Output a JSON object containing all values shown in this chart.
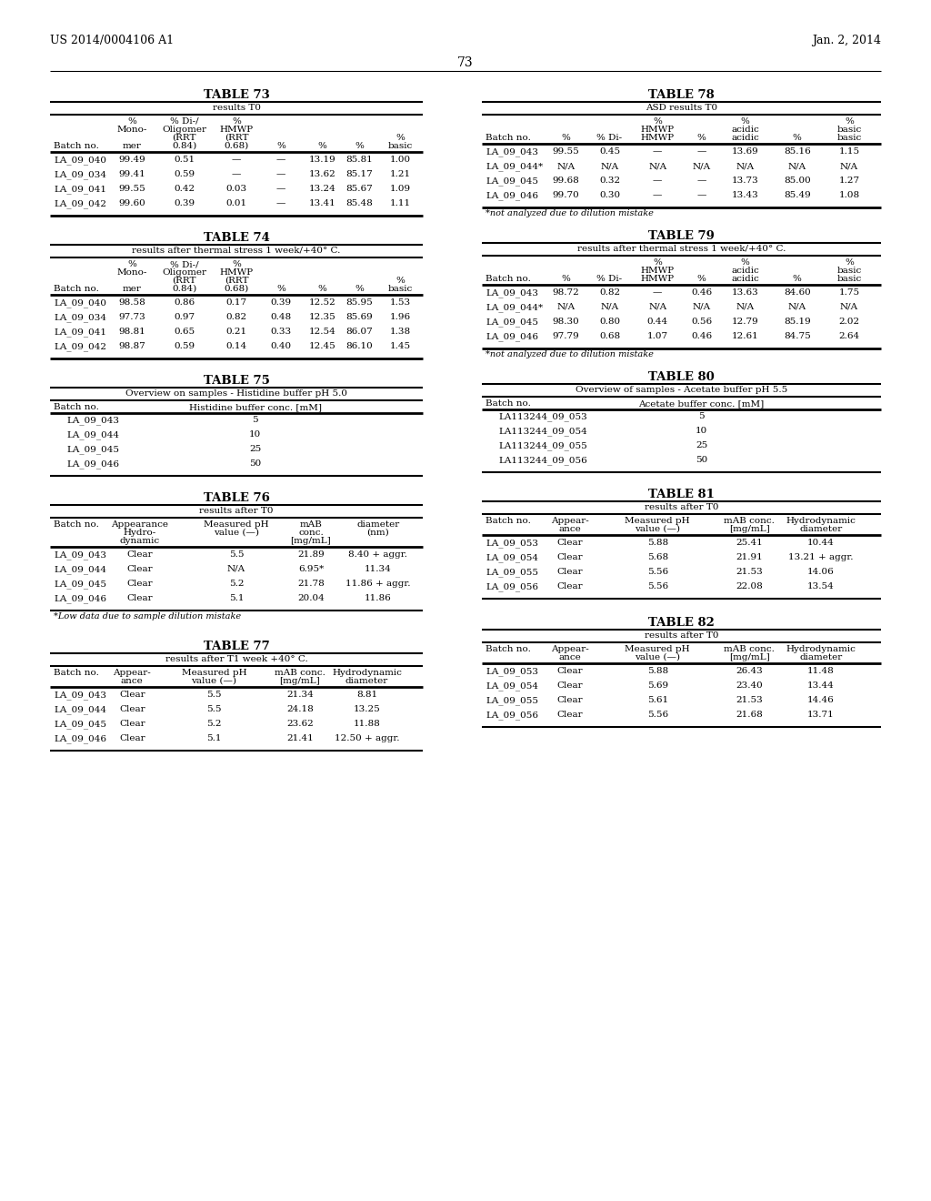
{
  "page_header_left": "US 2014/0004106 A1",
  "page_header_right": "Jan. 2, 2014",
  "page_number": "73",
  "background_color": "#ffffff",
  "table73_rows": [
    [
      "LA_09_040",
      "99.49",
      "0.51",
      "—",
      "—",
      "13.19",
      "85.81",
      "1.00"
    ],
    [
      "LA_09_034",
      "99.41",
      "0.59",
      "—",
      "—",
      "13.62",
      "85.17",
      "1.21"
    ],
    [
      "LA_09_041",
      "99.55",
      "0.42",
      "0.03",
      "—",
      "13.24",
      "85.67",
      "1.09"
    ],
    [
      "LA_09_042",
      "99.60",
      "0.39",
      "0.01",
      "—",
      "13.41",
      "85.48",
      "1.11"
    ]
  ],
  "table74_rows": [
    [
      "LA_09_040",
      "98.58",
      "0.86",
      "0.17",
      "0.39",
      "12.52",
      "85.95",
      "1.53"
    ],
    [
      "LA_09_034",
      "97.73",
      "0.97",
      "0.82",
      "0.48",
      "12.35",
      "85.69",
      "1.96"
    ],
    [
      "LA_09_041",
      "98.81",
      "0.65",
      "0.21",
      "0.33",
      "12.54",
      "86.07",
      "1.38"
    ],
    [
      "LA_09_042",
      "98.87",
      "0.59",
      "0.14",
      "0.40",
      "12.45",
      "86.10",
      "1.45"
    ]
  ],
  "table75_rows": [
    [
      "LA_09_043",
      "5"
    ],
    [
      "LA_09_044",
      "10"
    ],
    [
      "LA_09_045",
      "25"
    ],
    [
      "LA_09_046",
      "50"
    ]
  ],
  "table76_rows": [
    [
      "LA_09_043",
      "Clear",
      "5.5",
      "21.89",
      "8.40 + aggr."
    ],
    [
      "LA_09_044",
      "Clear",
      "N/A",
      "6.95*",
      "11.34"
    ],
    [
      "LA_09_045",
      "Clear",
      "5.2",
      "21.78",
      "11.86 + aggr."
    ],
    [
      "LA_09_046",
      "Clear",
      "5.1",
      "20.04",
      "11.86"
    ]
  ],
  "table76_footnote": "*Low data due to sample dilution mistake",
  "table77_rows": [
    [
      "LA_09_043",
      "Clear",
      "5.5",
      "21.34",
      "8.81"
    ],
    [
      "LA_09_044",
      "Clear",
      "5.5",
      "24.18",
      "13.25"
    ],
    [
      "LA_09_045",
      "Clear",
      "5.2",
      "23.62",
      "11.88"
    ],
    [
      "LA_09_046",
      "Clear",
      "5.1",
      "21.41",
      "12.50 + aggr."
    ]
  ],
  "table78_rows": [
    [
      "LA_09_043",
      "99.55",
      "0.45",
      "—",
      "—",
      "13.69",
      "85.16",
      "1.15"
    ],
    [
      "LA_09_044*",
      "N/A",
      "N/A",
      "N/A",
      "N/A",
      "N/A",
      "N/A",
      "N/A"
    ],
    [
      "LA_09_045",
      "99.68",
      "0.32",
      "—",
      "—",
      "13.73",
      "85.00",
      "1.27"
    ],
    [
      "LA_09_046",
      "99.70",
      "0.30",
      "—",
      "—",
      "13.43",
      "85.49",
      "1.08"
    ]
  ],
  "table78_footnote": "*not analyzed due to dilution mistake",
  "table79_rows": [
    [
      "LA_09_043",
      "98.72",
      "0.82",
      "—",
      "0.46",
      "13.63",
      "84.60",
      "1.75"
    ],
    [
      "LA_09_044*",
      "N/A",
      "N/A",
      "N/A",
      "N/A",
      "N/A",
      "N/A",
      "N/A"
    ],
    [
      "LA_09_045",
      "98.30",
      "0.80",
      "0.44",
      "0.56",
      "12.79",
      "85.19",
      "2.02"
    ],
    [
      "LA_09_046",
      "97.79",
      "0.68",
      "1.07",
      "0.46",
      "12.61",
      "84.75",
      "2.64"
    ]
  ],
  "table79_footnote": "*not analyzed due to dilution mistake",
  "table80_rows": [
    [
      "LA113244_09_053",
      "5"
    ],
    [
      "LA113244_09_054",
      "10"
    ],
    [
      "LA113244_09_055",
      "25"
    ],
    [
      "LA113244_09_056",
      "50"
    ]
  ],
  "table81_rows": [
    [
      "LA_09_053",
      "Clear",
      "5.88",
      "25.41",
      "10.44"
    ],
    [
      "LA_09_054",
      "Clear",
      "5.68",
      "21.91",
      "13.21 + aggr."
    ],
    [
      "LA_09_055",
      "Clear",
      "5.56",
      "21.53",
      "14.06"
    ],
    [
      "LA_09_056",
      "Clear",
      "5.56",
      "22.08",
      "13.54"
    ]
  ],
  "table82_rows": [
    [
      "LA_09_053",
      "Clear",
      "5.88",
      "26.43",
      "11.48"
    ],
    [
      "LA_09_054",
      "Clear",
      "5.69",
      "23.40",
      "13.44"
    ],
    [
      "LA_09_055",
      "Clear",
      "5.61",
      "21.53",
      "14.46"
    ],
    [
      "LA_09_056",
      "Clear",
      "5.56",
      "21.68",
      "13.71"
    ]
  ]
}
